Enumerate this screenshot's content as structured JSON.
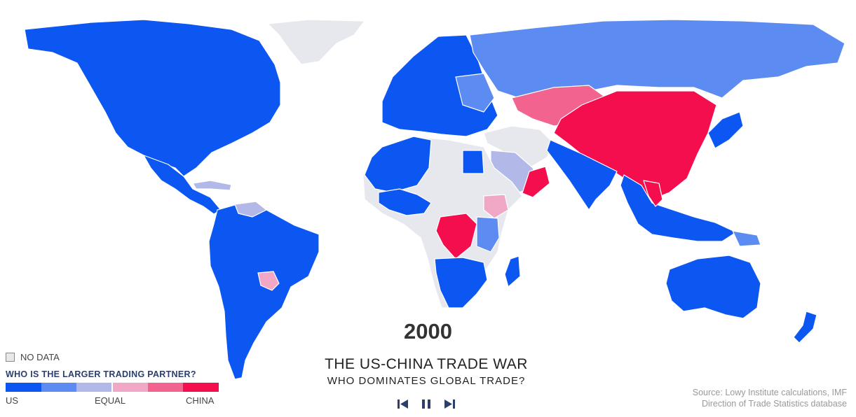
{
  "legend": {
    "no_data_label": "NO DATA",
    "title": "WHO IS THE LARGER TRADING PARTNER?",
    "scale_colors": [
      "#0c57f2",
      "#5c8cf2",
      "#b2b8e8",
      "#f0a8c6",
      "#f2638f",
      "#f40e4e"
    ],
    "no_data_color": "#e6e8ee",
    "label_left": "US",
    "label_mid": "EQUAL",
    "label_right": "CHINA"
  },
  "year": "2000",
  "title": "THE US-CHINA TRADE WAR",
  "subtitle": "WHO DOMINATES GLOBAL TRADE?",
  "controls": [
    "skip-back",
    "pause",
    "skip-forward"
  ],
  "source": {
    "line1": "Source: Lowy Institute calculations, IMF",
    "line2": "Direction of Trade Statistics database"
  },
  "regions": [
    {
      "name": "north-america",
      "category": "US"
    },
    {
      "name": "greenland",
      "category": "No data"
    },
    {
      "name": "central-america",
      "category": "US"
    },
    {
      "name": "south-america",
      "category": "US"
    },
    {
      "name": "paraguay",
      "category": "China, slight"
    },
    {
      "name": "europe",
      "category": "US"
    },
    {
      "name": "russia",
      "category": "US, slight"
    },
    {
      "name": "kazakhstan",
      "category": "China, moderate"
    },
    {
      "name": "china",
      "category": "China"
    },
    {
      "name": "mongolia",
      "category": "China"
    },
    {
      "name": "india",
      "category": "US"
    },
    {
      "name": "southeast-asia",
      "category": "US"
    },
    {
      "name": "vietnam",
      "category": "China"
    },
    {
      "name": "japan",
      "category": "US"
    },
    {
      "name": "middle-east",
      "category": "Equal"
    },
    {
      "name": "oman",
      "category": "China"
    },
    {
      "name": "north-africa",
      "category": "US"
    },
    {
      "name": "sahel",
      "category": "No data"
    },
    {
      "name": "dr-congo",
      "category": "China"
    },
    {
      "name": "southern-africa",
      "category": "US"
    },
    {
      "name": "australia",
      "category": "US"
    },
    {
      "name": "new-zealand",
      "category": "US"
    }
  ]
}
